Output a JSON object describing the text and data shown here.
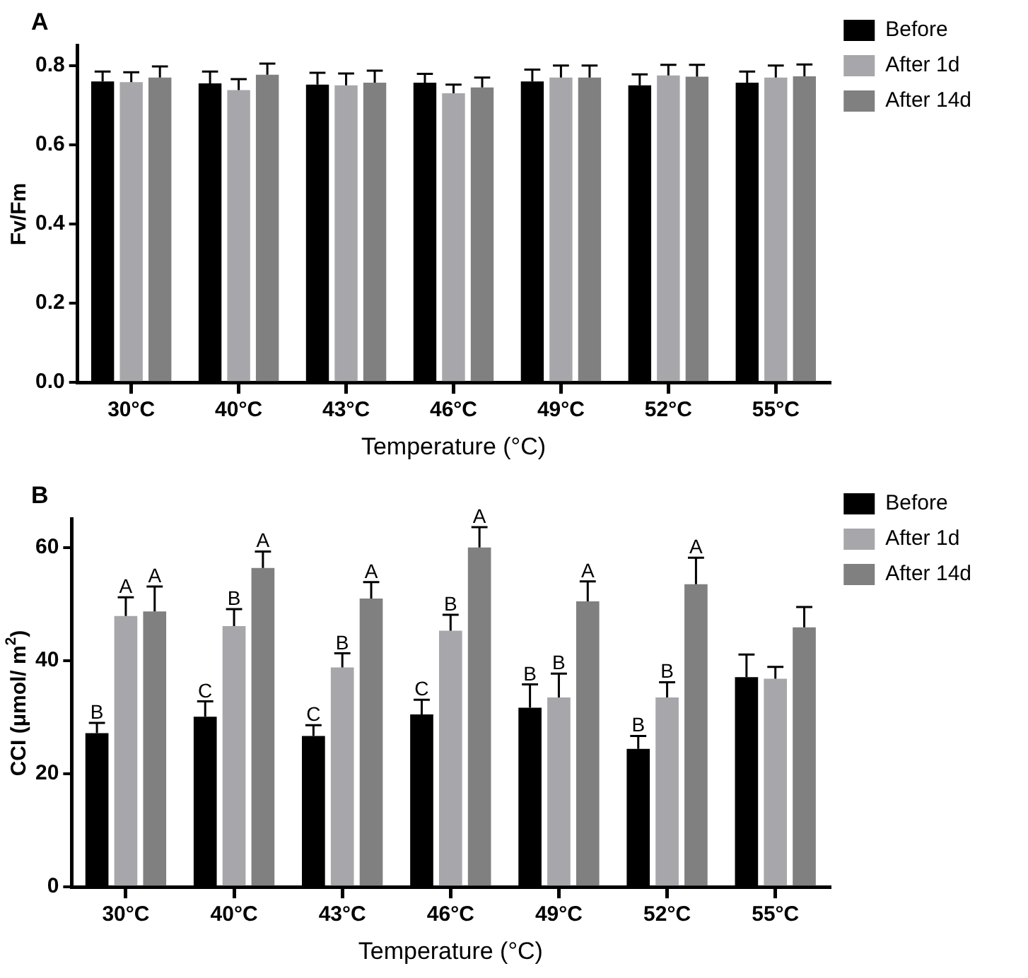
{
  "chart_data": [
    {
      "type": "bar",
      "title": "A",
      "xlabel": "Temperature (°C)",
      "ylabel": "Fv/Fm",
      "categories": [
        "30°C",
        "40°C",
        "43°C",
        "46°C",
        "49°C",
        "52°C",
        "55°C"
      ],
      "series": [
        {
          "name": "Before",
          "color": "#000000",
          "values": [
            0.76,
            0.755,
            0.752,
            0.757,
            0.76,
            0.75,
            0.757
          ],
          "errors": [
            0.025,
            0.03,
            0.03,
            0.022,
            0.03,
            0.028,
            0.028
          ]
        },
        {
          "name": "After 1d",
          "color": "#a6a6ab",
          "values": [
            0.758,
            0.738,
            0.75,
            0.73,
            0.77,
            0.775,
            0.77
          ],
          "errors": [
            0.025,
            0.028,
            0.03,
            0.022,
            0.03,
            0.027,
            0.03
          ]
        },
        {
          "name": "After 14d",
          "color": "#808080",
          "values": [
            0.77,
            0.777,
            0.757,
            0.745,
            0.77,
            0.772,
            0.773
          ],
          "errors": [
            0.028,
            0.028,
            0.03,
            0.025,
            0.03,
            0.03,
            0.03
          ]
        }
      ],
      "ylim": [
        0,
        0.85
      ],
      "yticks": [
        {
          "value": 0,
          "label": "0.0"
        },
        0.2,
        0.4,
        0.6,
        0.8
      ],
      "grid": false,
      "legend": "right"
    },
    {
      "type": "bar",
      "title": "B",
      "xlabel": "Temperature (°C)",
      "ylabel": "CCI (μmol/ m$^{2}$)",
      "categories": [
        "30°C",
        "40°C",
        "43°C",
        "46°C",
        "49°C",
        "52°C",
        "55°C"
      ],
      "series": [
        {
          "name": "Before",
          "color": "#000000",
          "values": [
            27.2,
            30.1,
            26.7,
            30.5,
            31.7,
            24.4,
            37.1
          ],
          "errors": [
            1.8,
            2.7,
            1.9,
            2.6,
            4.1,
            2.3,
            4.0
          ],
          "value_labels": [
            "B",
            "C",
            "C",
            "C",
            "B",
            "B",
            null
          ]
        },
        {
          "name": "After 1d",
          "color": "#a6a6ab",
          "values": [
            47.9,
            46.1,
            38.8,
            45.3,
            33.5,
            33.5,
            36.8
          ],
          "errors": [
            3.3,
            3.0,
            2.5,
            2.8,
            4.2,
            2.7,
            2.1
          ],
          "value_labels": [
            "A",
            "B",
            "B",
            "B",
            "B",
            "B",
            null
          ]
        },
        {
          "name": "After 14d",
          "color": "#808080",
          "values": [
            48.7,
            56.4,
            51.0,
            60.0,
            50.5,
            53.5,
            45.9
          ],
          "errors": [
            4.4,
            2.9,
            2.9,
            3.6,
            3.5,
            4.7,
            3.6
          ],
          "value_labels": [
            "A",
            "A",
            "A",
            "A",
            "A",
            "A",
            null
          ]
        }
      ],
      "ylim": [
        0,
        65
      ],
      "yticks": [
        0,
        20,
        40,
        60
      ],
      "grid": false,
      "legend": "right"
    }
  ]
}
